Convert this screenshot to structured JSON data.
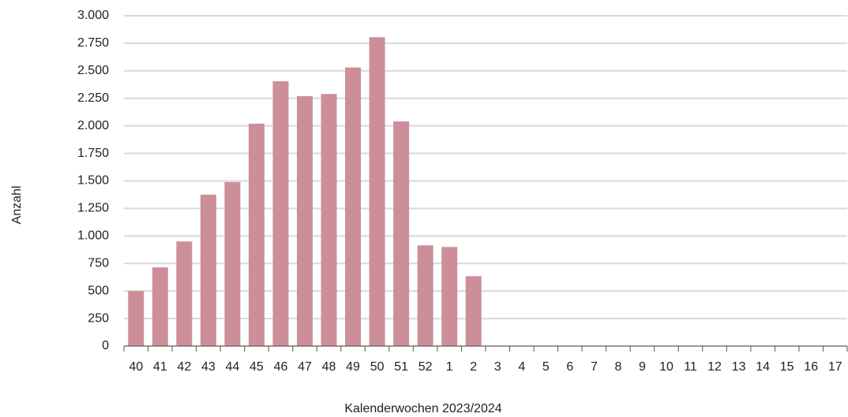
{
  "chart_data": {
    "type": "bar",
    "x_label": "Kalenderwochen 2023/2024",
    "y_label": "Anzahl",
    "categories": [
      "40",
      "41",
      "42",
      "43",
      "44",
      "45",
      "46",
      "47",
      "48",
      "49",
      "50",
      "51",
      "52",
      "1",
      "2",
      "3",
      "4",
      "5",
      "6",
      "7",
      "8",
      "9",
      "10",
      "11",
      "12",
      "13",
      "14",
      "15",
      "16",
      "17"
    ],
    "values": [
      500,
      715,
      950,
      1375,
      1490,
      2020,
      2405,
      2270,
      2290,
      2530,
      2805,
      2040,
      915,
      900,
      635,
      null,
      null,
      null,
      null,
      null,
      null,
      null,
      null,
      null,
      null,
      null,
      null,
      null,
      null,
      null
    ],
    "color": "#cc8f99",
    "ylim": [
      0,
      3000
    ],
    "yticks": [
      0,
      250,
      500,
      750,
      {
        "value": 1000,
        "label": "1.000"
      },
      {
        "value": 1250,
        "label": "1.250"
      },
      {
        "value": 1500,
        "label": "1.500"
      },
      {
        "value": 1750,
        "label": "1.750"
      },
      {
        "value": 2000,
        "label": "2.000"
      },
      {
        "value": 2250,
        "label": "2.250"
      },
      {
        "value": 2500,
        "label": "2.500"
      },
      {
        "value": 2750,
        "label": "2.750"
      },
      {
        "value": 3000,
        "label": "3.000"
      }
    ],
    "grid": true
  }
}
